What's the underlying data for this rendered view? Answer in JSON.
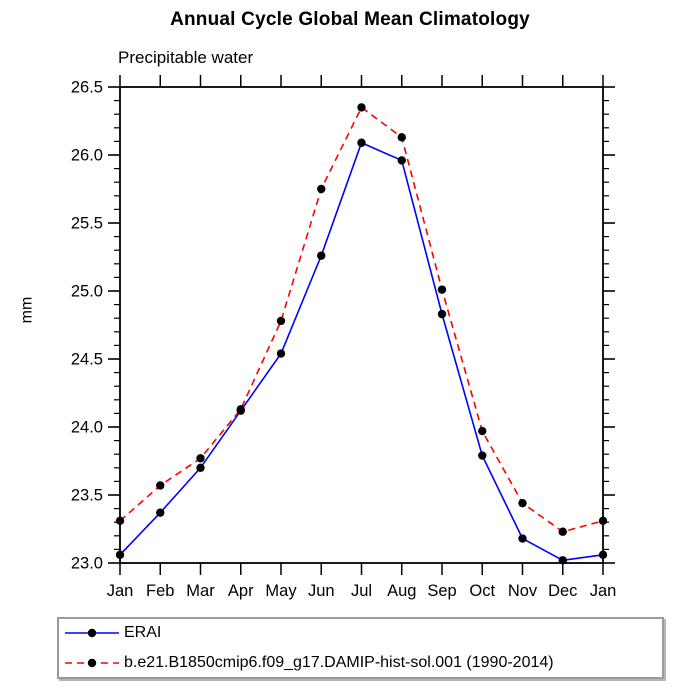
{
  "chart_data": {
    "type": "line",
    "title": "Annual Cycle Global Mean Climatology",
    "subtitle": "Precipitable water",
    "ylabel": "mm",
    "xlabel": "",
    "categories": [
      "Jan",
      "Feb",
      "Mar",
      "Apr",
      "May",
      "Jun",
      "Jul",
      "Aug",
      "Sep",
      "Oct",
      "Nov",
      "Dec",
      "Jan"
    ],
    "ylim": [
      23.0,
      26.5
    ],
    "ytick_major": 0.5,
    "ytick_minor": 0.1,
    "ytick_labels": [
      "23.0",
      "23.5",
      "24.0",
      "24.5",
      "25.0",
      "25.5",
      "26.0",
      "26.5"
    ],
    "grid": false,
    "legend_position": "bottom-left-box",
    "marker": "filled-circle",
    "marker_color": "#000000",
    "series": [
      {
        "name": "ERAI",
        "color": "#0000ff",
        "style": "solid",
        "values": [
          23.06,
          23.37,
          23.7,
          24.12,
          24.54,
          25.26,
          26.09,
          25.96,
          24.83,
          23.79,
          23.18,
          23.02,
          23.06
        ]
      },
      {
        "name": "b.e21.B1850cmip6.f09_g17.DAMIP-hist-sol.001 (1990-2014)",
        "color": "#ff0000",
        "style": "dashed",
        "values": [
          23.31,
          23.57,
          23.77,
          24.13,
          24.78,
          25.75,
          26.35,
          26.13,
          25.01,
          23.97,
          23.44,
          23.23,
          23.31
        ]
      }
    ],
    "colors": {
      "axis": "#000000",
      "background": "#ffffff",
      "erai_line": "#0000ff",
      "model_line": "#ff0000",
      "marker": "#000000"
    }
  }
}
